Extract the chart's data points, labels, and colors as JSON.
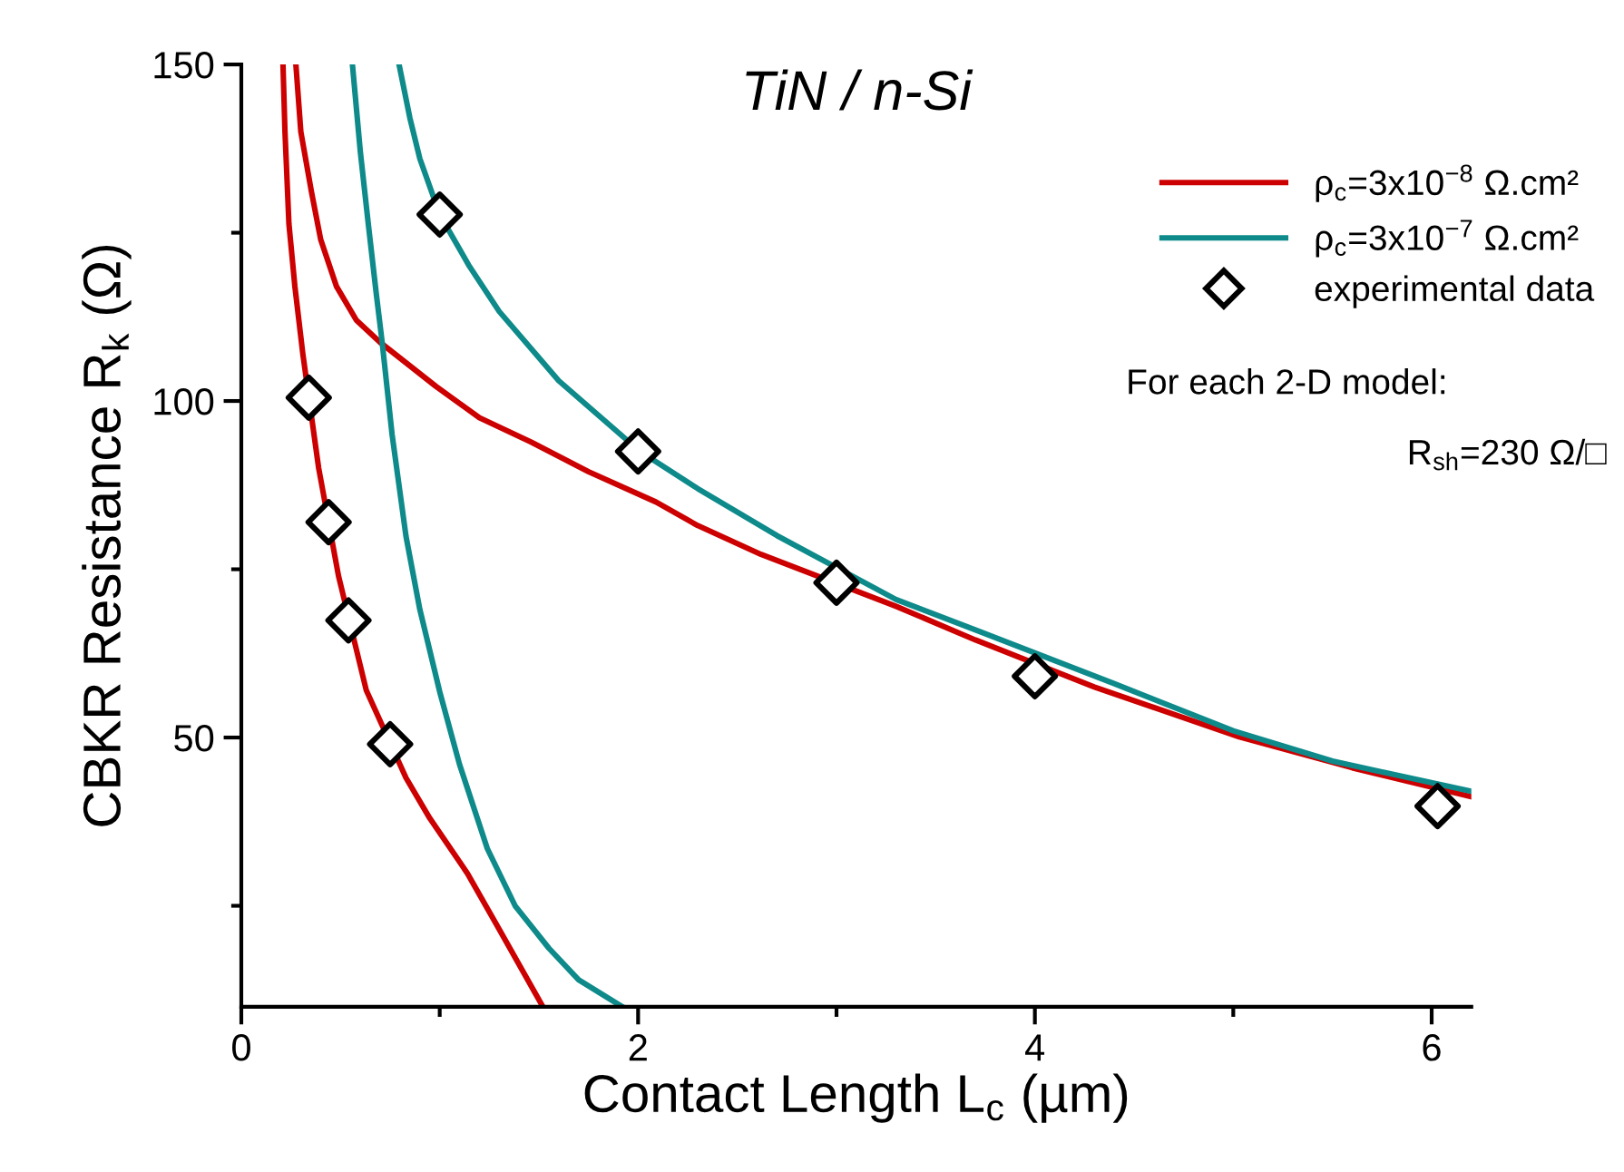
{
  "chart_data": {
    "type": "line",
    "title": "TiN / n-Si",
    "xlabel": "Contact Length L$_{c}$ (µm)",
    "ylabel": "CBKR Resistance R$_{k}$ (Ω)",
    "xlim": [
      0,
      6.2
    ],
    "ylim": [
      10,
      150
    ],
    "xticks": [
      0,
      {
        "value": 1,
        "label": null
      },
      2,
      {
        "value": 3,
        "label": null
      },
      4,
      {
        "value": 5,
        "label": null
      },
      6
    ],
    "yticks": [
      {
        "value": 25,
        "label": null
      },
      50,
      {
        "value": 75,
        "label": null
      },
      100,
      {
        "value": 125,
        "label": null
      },
      150
    ],
    "grid": false,
    "legend": "top right",
    "annotations": [
      "For each 2-D model:",
      "R$_{sh}$=230 Ω/□"
    ],
    "series": [
      {
        "name": "ρ$_{c}$=3x10$^{−8}$ Ω.cm²",
        "color": "#cc0000",
        "marker": "none",
        "x": [
          0.275,
          0.3,
          0.354,
          0.4,
          0.48,
          0.58,
          0.7,
          0.98,
          1.2,
          1.46,
          1.75,
          2.09,
          2.3,
          2.62,
          3.3,
          3.7,
          4.3,
          5.03,
          5.6,
          6.2
        ],
        "values": [
          150,
          140,
          131,
          124,
          117,
          112,
          108.7,
          102.2,
          97.5,
          93.9,
          89.5,
          85,
          81.5,
          77.2,
          69.5,
          64.5,
          57.5,
          50.1,
          45.5,
          41.2
        ]
      },
      {
        "color": "#cc0000",
        "marker": "none",
        "x": [
          0.21,
          0.22,
          0.24,
          0.27,
          0.31,
          0.39,
          0.49,
          0.63,
          0.83,
          0.95,
          1.14,
          1.3,
          1.52
        ],
        "values": [
          150,
          140,
          126.3,
          117,
          107,
          90,
          74,
          57,
          44,
          38,
          29.8,
          21.5,
          10
        ]
      },
      {
        "name": "ρ$_{c}$=3x10$^{−7}$ Ω.cm²",
        "color": "#0e8a8a",
        "marker": "none",
        "x": [
          0.795,
          0.85,
          0.9,
          1.0,
          1.15,
          1.3,
          1.6,
          2.01,
          2.3,
          2.7,
          3.3,
          3.7,
          4.4,
          5.0,
          5.5,
          6.2
        ],
        "values": [
          150,
          142,
          136,
          127.7,
          120,
          113.3,
          103,
          92.5,
          87,
          80,
          70.5,
          66,
          58,
          51,
          46.5,
          42
        ]
      },
      {
        "color": "#0e8a8a",
        "marker": "none",
        "x": [
          0.56,
          0.6,
          0.64,
          0.68,
          0.71,
          0.76,
          0.83,
          0.9,
          1.0,
          1.1,
          1.24,
          1.38,
          1.55,
          1.7,
          1.92
        ],
        "values": [
          150,
          137,
          126.3,
          116,
          108.7,
          95,
          79.9,
          69,
          56.8,
          46,
          33.5,
          25,
          18.7,
          14,
          10
        ]
      },
      {
        "name": "experimental data",
        "color": "#000000",
        "type": "scatter",
        "marker": "diamond",
        "x": [
          0.34,
          0.44,
          0.54,
          0.75,
          1.0,
          2.0,
          3.0,
          4.0,
          6.03
        ],
        "values": [
          100.5,
          82,
          67.4,
          49,
          127.7,
          92.5,
          73,
          59.1,
          39.8
        ]
      }
    ]
  }
}
